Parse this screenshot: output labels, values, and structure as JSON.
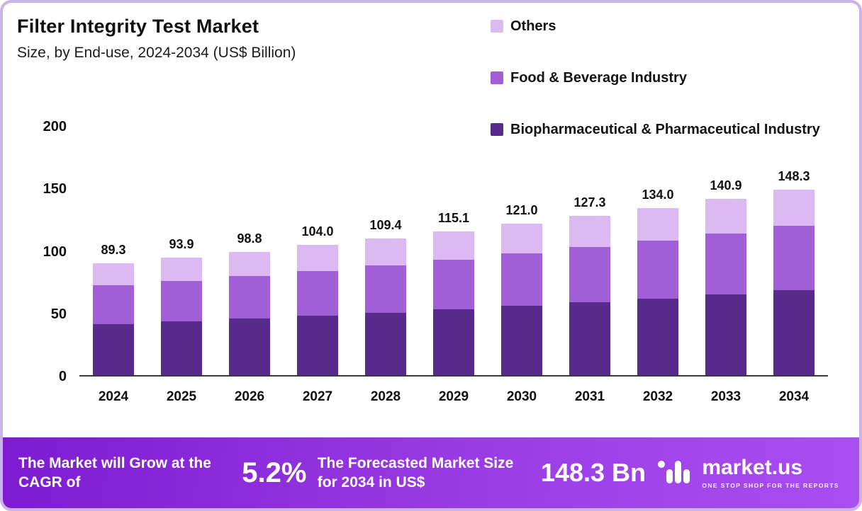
{
  "header": {
    "title": "Filter Integrity Test Market",
    "subtitle": "Size, by End-use, 2024-2034 (US$ Billion)"
  },
  "legend": [
    {
      "label": "Others",
      "color": "#ddb9f1"
    },
    {
      "label": "Food & Beverage Industry",
      "color": "#a05fd6"
    },
    {
      "label": "Biopharmaceutical & Pharmaceutical Industry",
      "color": "#582a8c"
    }
  ],
  "chart_data": {
    "type": "bar",
    "stacked": true,
    "title": "Filter Integrity Test Market",
    "subtitle": "Size, by End-use, 2024-2034 (US$ Billion)",
    "xlabel": "",
    "ylabel": "US$ Billion",
    "categories": [
      "2024",
      "2025",
      "2026",
      "2027",
      "2028",
      "2029",
      "2030",
      "2031",
      "2032",
      "2033",
      "2034"
    ],
    "total_labels": [
      "89.3",
      "93.9",
      "98.8",
      "104.0",
      "109.4",
      "115.1",
      "121.0",
      "127.3",
      "134.0",
      "140.9",
      "148.3"
    ],
    "series": [
      {
        "name": "Biopharmaceutical & Pharmaceutical Industry",
        "color": "#582a8c",
        "values": [
          41.0,
          43.0,
          45.2,
          47.5,
          50.0,
          52.6,
          55.3,
          58.2,
          61.2,
          64.4,
          67.8
        ]
      },
      {
        "name": "Food & Beverage Industry",
        "color": "#a05fd6",
        "values": [
          31.0,
          32.5,
          34.1,
          36.0,
          37.9,
          39.9,
          42.0,
          44.2,
          46.5,
          48.9,
          51.5
        ]
      },
      {
        "name": "Others",
        "color": "#ddb9f1",
        "values": [
          17.3,
          18.4,
          19.5,
          20.5,
          21.5,
          22.6,
          23.7,
          24.9,
          26.3,
          27.6,
          29.0
        ]
      }
    ],
    "ylim": [
      0,
      200
    ],
    "yticks": [
      0,
      50,
      100,
      150,
      200
    ],
    "grid": false,
    "legend_position": "top-right"
  },
  "footer": {
    "cagr_label": "The Market will Grow at the CAGR of",
    "cagr_value": "5.2%",
    "forecast_label": "The Forecasted Market Size for 2034 in US$",
    "forecast_value": "148.3 Bn",
    "brand": "market.us",
    "brand_tagline": "ONE STOP SHOP FOR THE REPORTS"
  }
}
